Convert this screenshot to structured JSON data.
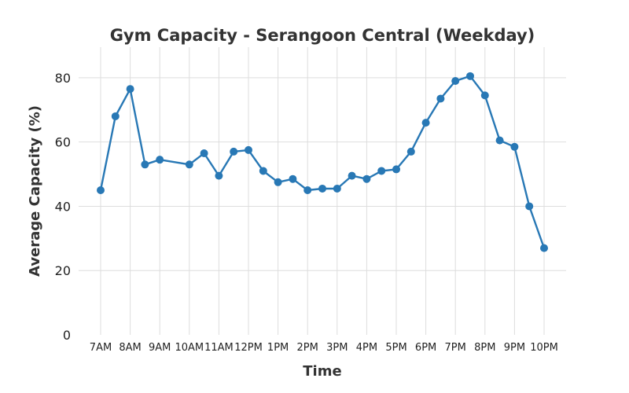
{
  "chart_data": {
    "type": "line",
    "title": "Gym Capacity - Serangoon Central (Weekday)",
    "xlabel": "Time",
    "ylabel": "Average Capacity (%)",
    "x_tick_labels": [
      "7AM",
      "8AM",
      "9AM",
      "10AM",
      "11AM",
      "12PM",
      "1PM",
      "2PM",
      "3PM",
      "4PM",
      "5PM",
      "6PM",
      "7PM",
      "8PM",
      "9PM",
      "10PM"
    ],
    "y_ticks": [
      0,
      20,
      40,
      60,
      80
    ],
    "ylim": [
      0,
      90
    ],
    "x_range_hours": [
      7,
      22
    ],
    "grid": true,
    "legend": "none",
    "series": [
      {
        "color": "#2878b5",
        "x": [
          7,
          7.5,
          8,
          8.5,
          9,
          10,
          10.5,
          11,
          11.5,
          12,
          12.5,
          13,
          13.5,
          14,
          14.5,
          15,
          15.5,
          16,
          16.5,
          17,
          17.5,
          18,
          18.5,
          19,
          19.5,
          20,
          20.5,
          21,
          21.5,
          22
        ],
        "values": [
          45,
          68,
          76.5,
          53,
          54.5,
          53,
          56.5,
          49.5,
          57,
          57.5,
          51,
          47.5,
          48.5,
          45,
          45.5,
          45.5,
          49.5,
          48.5,
          51,
          51.5,
          57,
          66,
          73.5,
          79,
          80.5,
          74.5,
          60.5,
          58.5,
          40,
          27
        ]
      }
    ]
  }
}
